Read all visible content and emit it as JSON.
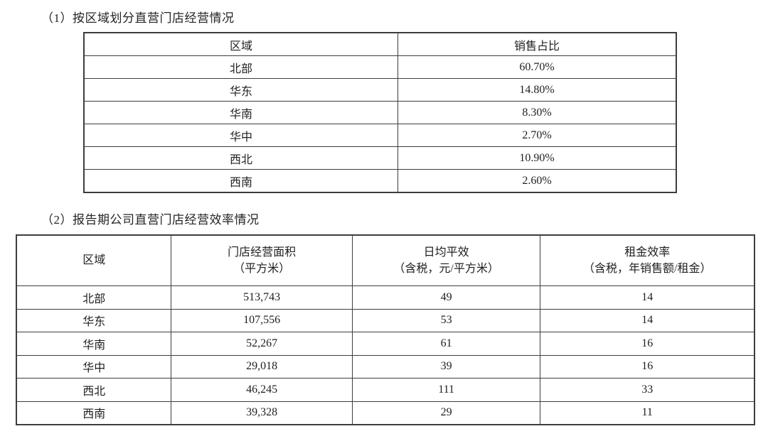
{
  "page": {
    "background": "#ffffff",
    "text_color": "#1f1f1f",
    "border_color": "#3d3d3d"
  },
  "section1": {
    "heading": "（1）按区域划分直营门店经营情况",
    "table": {
      "type": "table",
      "columns": [
        "区域",
        "销售占比"
      ],
      "rows": [
        [
          "北部",
          "60.70%"
        ],
        [
          "华东",
          "14.80%"
        ],
        [
          "华南",
          "8.30%"
        ],
        [
          "华中",
          "2.70%"
        ],
        [
          "西北",
          "10.90%"
        ],
        [
          "西南",
          "2.60%"
        ]
      ]
    }
  },
  "section2": {
    "heading": "（2）报告期公司直营门店经营效率情况",
    "table": {
      "type": "table",
      "columns": [
        {
          "line1": "区域",
          "line2": ""
        },
        {
          "line1": "门店经营面积",
          "line2": "（平方米）"
        },
        {
          "line1": "日均平效",
          "line2": "（含税，元/平方米）"
        },
        {
          "line1": "租金效率",
          "line2": "（含税，年销售额/租金）"
        }
      ],
      "rows": [
        [
          "北部",
          "513,743",
          "49",
          "14"
        ],
        [
          "华东",
          "107,556",
          "53",
          "14"
        ],
        [
          "华南",
          "52,267",
          "61",
          "16"
        ],
        [
          "华中",
          "29,018",
          "39",
          "16"
        ],
        [
          "西北",
          "46,245",
          "111",
          "33"
        ],
        [
          "西南",
          "39,328",
          "29",
          "11"
        ]
      ]
    }
  }
}
